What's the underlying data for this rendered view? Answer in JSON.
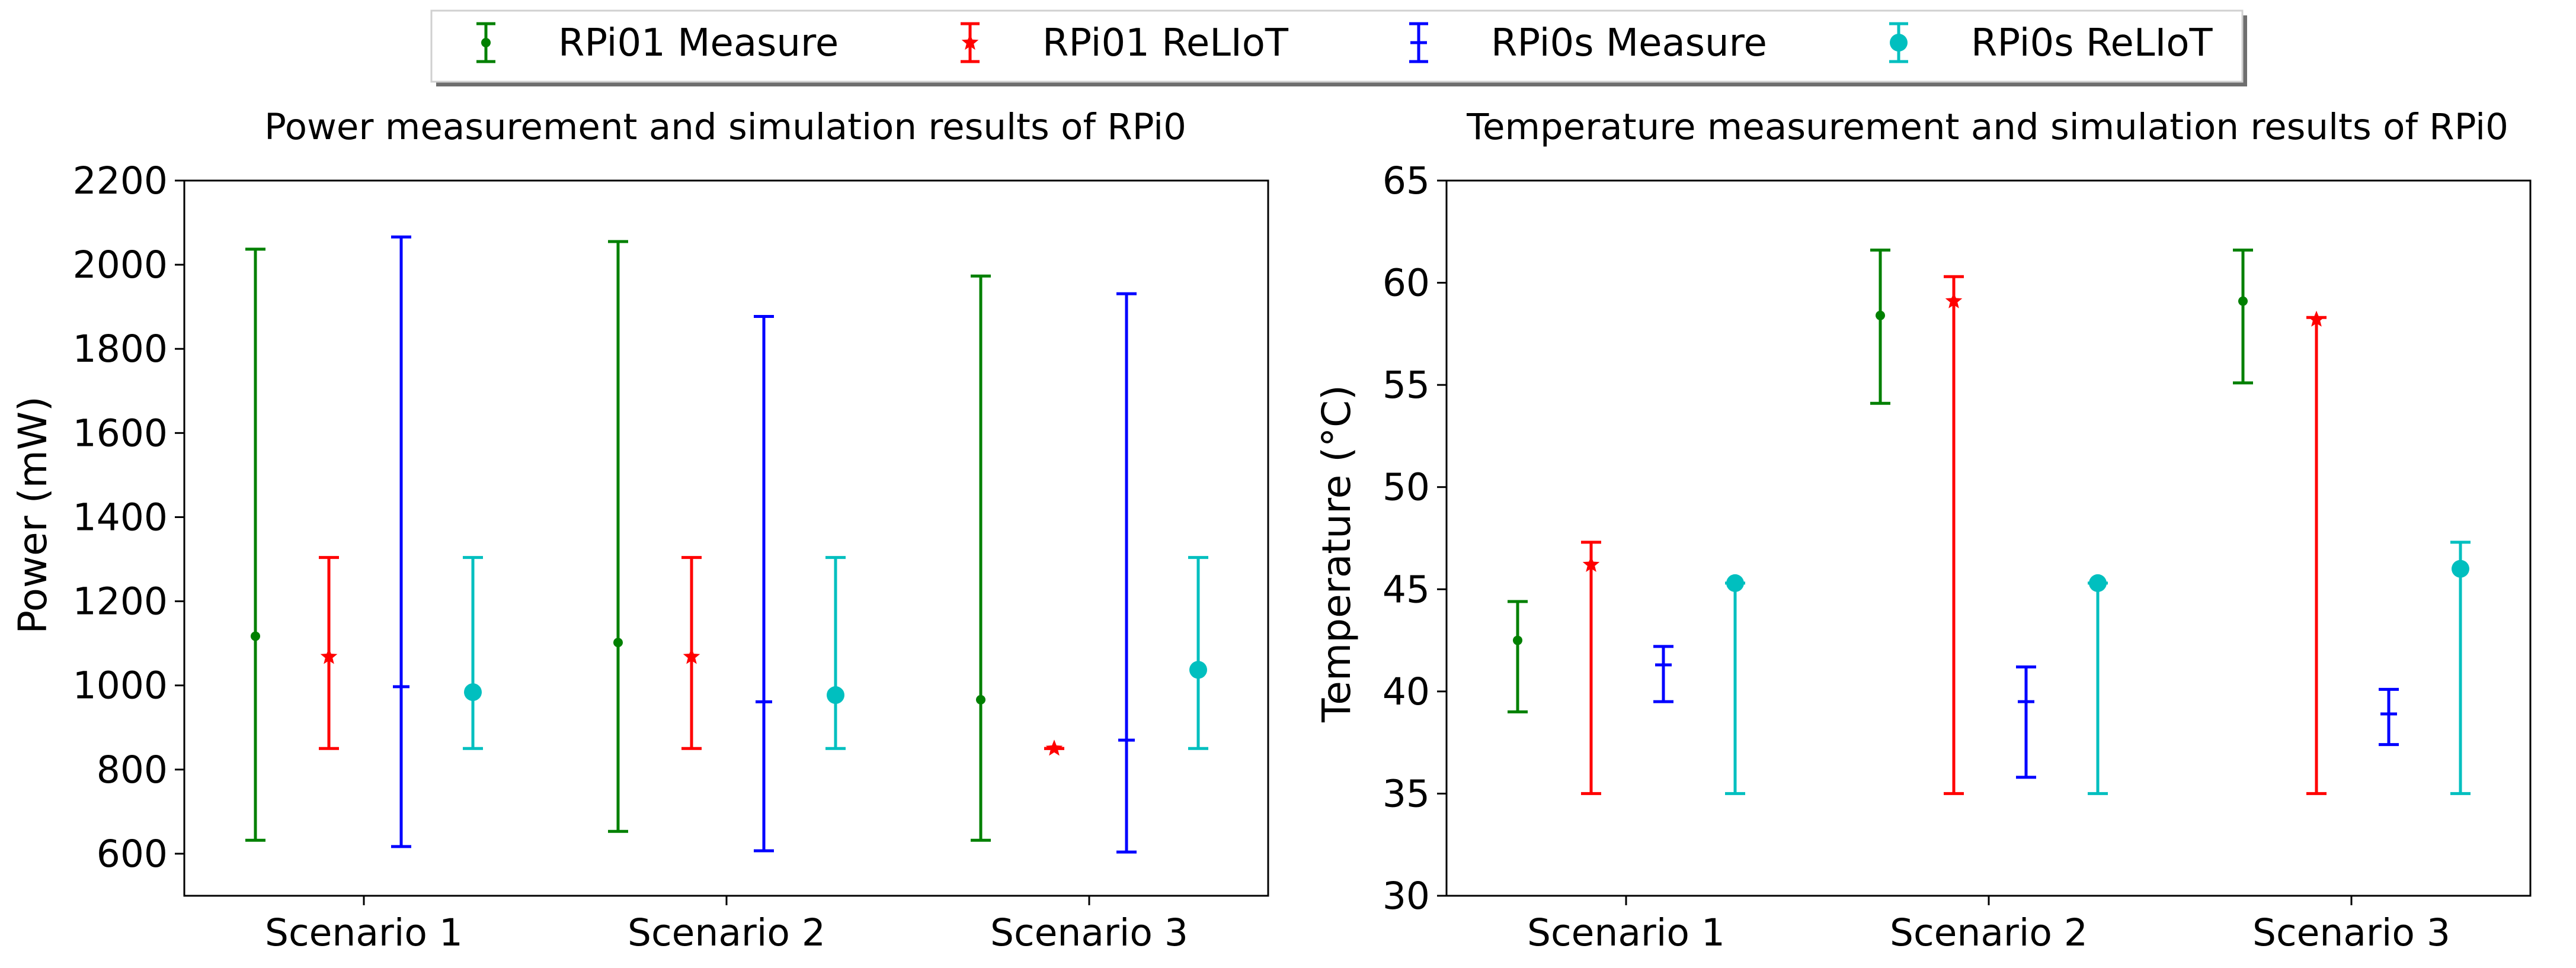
{
  "legend": {
    "entries": [
      {
        "label": "RPi01 Measure",
        "color": "#008000",
        "marker": "small-dot"
      },
      {
        "label": "RPi01 ReLIoT",
        "color": "#ff0000",
        "marker": "star"
      },
      {
        "label": "RPi0s Measure",
        "color": "#0000ff",
        "marker": "hline"
      },
      {
        "label": "RPi0s ReLIoT",
        "color": "#00bfbf",
        "marker": "large-dot"
      }
    ],
    "placement": "top-center"
  },
  "chart_data": [
    {
      "type": "errorbar",
      "title": "Power measurement and simulation results of RPi0",
      "xlabel": "",
      "ylabel": "Power (mW)",
      "categories": [
        "Scenario 1",
        "Scenario 2",
        "Scenario 3"
      ],
      "ylim": [
        500,
        2200
      ],
      "yticks": [
        600,
        800,
        1000,
        1200,
        1400,
        1600,
        1800,
        2000,
        2200
      ],
      "grid": false,
      "series": [
        {
          "name": "RPi01 Measure",
          "color": "#008000",
          "marker": "small-dot",
          "points": [
            {
              "value": 1117,
              "low": 632,
              "high": 2037
            },
            {
              "value": 1102,
              "low": 653,
              "high": 2055
            },
            {
              "value": 966,
              "low": 632,
              "high": 1973
            }
          ]
        },
        {
          "name": "RPi01 ReLIoT",
          "color": "#ff0000",
          "marker": "star",
          "points": [
            {
              "value": 1068,
              "low": 850,
              "high": 1304
            },
            {
              "value": 1068,
              "low": 850,
              "high": 1304
            },
            {
              "value": 850,
              "low": 850,
              "high": 850
            }
          ]
        },
        {
          "name": "RPi0s Measure",
          "color": "#0000ff",
          "marker": "hline",
          "points": [
            {
              "value": 997,
              "low": 617,
              "high": 2066
            },
            {
              "value": 961,
              "low": 607,
              "high": 1877
            },
            {
              "value": 870,
              "low": 604,
              "high": 1931
            }
          ]
        },
        {
          "name": "RPi0s ReLIoT",
          "color": "#00bfbf",
          "marker": "large-dot",
          "points": [
            {
              "value": 984,
              "low": 850,
              "high": 1304
            },
            {
              "value": 977,
              "low": 850,
              "high": 1304
            },
            {
              "value": 1037,
              "low": 850,
              "high": 1304
            }
          ]
        }
      ]
    },
    {
      "type": "errorbar",
      "title": "Temperature measurement and simulation results of RPi0",
      "xlabel": "",
      "ylabel": "Temperature (°C)",
      "categories": [
        "Scenario 1",
        "Scenario 2",
        "Scenario 3"
      ],
      "ylim": [
        30,
        65
      ],
      "yticks": [
        30,
        35,
        40,
        45,
        50,
        55,
        60,
        65
      ],
      "grid": false,
      "series": [
        {
          "name": "RPi01 Measure",
          "color": "#008000",
          "marker": "small-dot",
          "points": [
            {
              "value": 42.5,
              "low": 39.0,
              "high": 44.4
            },
            {
              "value": 58.4,
              "low": 54.1,
              "high": 61.6
            },
            {
              "value": 59.1,
              "low": 55.1,
              "high": 61.6
            }
          ]
        },
        {
          "name": "RPi01 ReLIoT",
          "color": "#ff0000",
          "marker": "star",
          "points": [
            {
              "value": 46.2,
              "low": 35.0,
              "high": 47.3
            },
            {
              "value": 59.1,
              "low": 35.0,
              "high": 60.3
            },
            {
              "value": 58.2,
              "low": 35.0,
              "high": 58.3
            }
          ]
        },
        {
          "name": "RPi0s Measure",
          "color": "#0000ff",
          "marker": "hline",
          "points": [
            {
              "value": 41.3,
              "low": 39.5,
              "high": 42.2
            },
            {
              "value": 39.5,
              "low": 35.8,
              "high": 41.2
            },
            {
              "value": 38.9,
              "low": 37.4,
              "high": 40.1
            }
          ]
        },
        {
          "name": "RPi0s ReLIoT",
          "color": "#00bfbf",
          "marker": "large-dot",
          "points": [
            {
              "value": 45.3,
              "low": 35.0,
              "high": 45.3
            },
            {
              "value": 45.3,
              "low": 35.0,
              "high": 45.3
            },
            {
              "value": 46.0,
              "low": 35.0,
              "high": 47.3
            }
          ]
        }
      ]
    }
  ]
}
